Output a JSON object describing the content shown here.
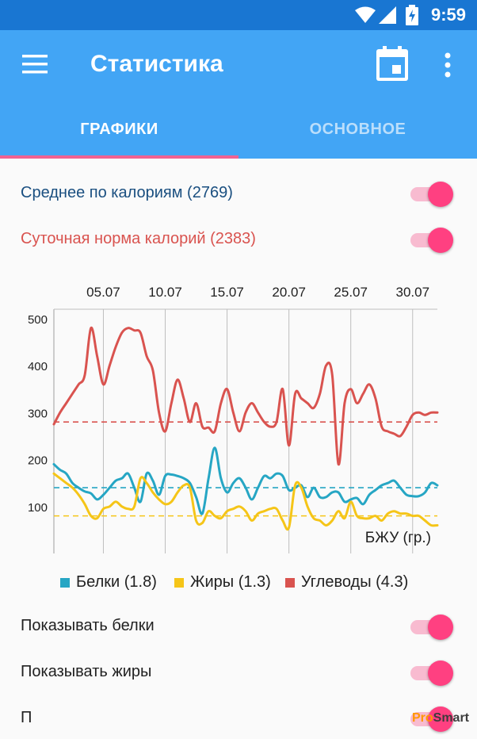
{
  "status_bar": {
    "time": "9:59"
  },
  "app_bar": {
    "title": "Статистика"
  },
  "tabs": [
    {
      "label": "ГРАФИКИ",
      "active": true
    },
    {
      "label": "ОСНОВНОЕ",
      "active": false
    }
  ],
  "toggles_top": [
    {
      "label": "Среднее по калориям (2769)",
      "color": "#1a4f80",
      "checked": true
    },
    {
      "label": "Суточная норма калорий (2383)",
      "color": "#d9534f",
      "checked": true
    }
  ],
  "chart_data": {
    "type": "line",
    "x_ticks": [
      "05.07",
      "10.07",
      "15.07",
      "20.07",
      "25.07",
      "30.07"
    ],
    "x_tick_positions": [
      5,
      10,
      15,
      20,
      25,
      30
    ],
    "x_range": [
      1,
      32
    ],
    "ylim": [
      0,
      520
    ],
    "y_ticks": [
      100,
      200,
      300,
      400,
      500
    ],
    "axis_label": "БЖУ (гр.)",
    "grid": true,
    "series": [
      {
        "name": "Белки (1.8)",
        "color": "#26a6c4",
        "avg": 140,
        "x": [
          1,
          1.5,
          2,
          2.5,
          3,
          3.5,
          4,
          4.5,
          5,
          5.5,
          6,
          6.5,
          7,
          7.5,
          8,
          8.5,
          9,
          9.5,
          10,
          10.5,
          11,
          11.5,
          12,
          12.5,
          13,
          13.5,
          14,
          14.5,
          15,
          15.5,
          16,
          16.5,
          17,
          17.5,
          18,
          18.5,
          19,
          19.5,
          20,
          20.5,
          21,
          21.5,
          22,
          22.5,
          23,
          23.5,
          24,
          24.5,
          25,
          25.5,
          26,
          26.5,
          27,
          27.5,
          28,
          28.5,
          29,
          29.5,
          30,
          30.5,
          31,
          31.5,
          32
        ],
        "values": [
          190,
          178,
          170,
          150,
          140,
          132,
          128,
          115,
          125,
          140,
          155,
          160,
          170,
          140,
          110,
          170,
          155,
          125,
          165,
          168,
          165,
          160,
          150,
          120,
          85,
          160,
          225,
          160,
          130,
          150,
          160,
          140,
          115,
          140,
          165,
          160,
          170,
          165,
          135,
          140,
          145,
          120,
          140,
          120,
          120,
          130,
          130,
          110,
          115,
          118,
          105,
          125,
          135,
          145,
          150,
          155,
          140,
          125,
          122,
          122,
          130,
          150,
          145
        ]
      },
      {
        "name": "Жиры (1.3)",
        "color": "#f5c518",
        "avg": 80,
        "x": [
          1,
          1.5,
          2,
          2.5,
          3,
          3.5,
          4,
          4.5,
          5,
          5.5,
          6,
          6.5,
          7,
          7.5,
          8,
          8.5,
          9,
          9.5,
          10,
          10.5,
          11,
          11.5,
          12,
          12.5,
          13,
          13.5,
          14,
          14.5,
          15,
          15.5,
          16,
          16.5,
          17,
          17.5,
          18,
          18.5,
          19,
          19.5,
          20,
          20.5,
          21,
          21.5,
          22,
          22.5,
          23,
          23.5,
          24,
          24.5,
          25,
          25.5,
          26,
          26.5,
          27,
          27.5,
          28,
          28.5,
          29,
          29.5,
          30,
          30.5,
          31,
          31.5,
          32
        ],
        "values": [
          170,
          160,
          150,
          140,
          125,
          105,
          80,
          75,
          95,
          100,
          110,
          100,
          95,
          100,
          160,
          150,
          130,
          115,
          105,
          110,
          130,
          145,
          140,
          70,
          65,
          90,
          80,
          75,
          90,
          95,
          100,
          90,
          70,
          85,
          90,
          95,
          95,
          70,
          55,
          145,
          140,
          100,
          75,
          70,
          60,
          70,
          90,
          75,
          110,
          80,
          75,
          75,
          80,
          70,
          85,
          90,
          85,
          85,
          80,
          80,
          70,
          60,
          60
        ]
      },
      {
        "name": "Углеводы (4.3)",
        "color": "#d9534f",
        "avg": 280,
        "x": [
          1,
          1.5,
          2,
          2.5,
          3,
          3.5,
          4,
          4.5,
          5,
          5.5,
          6,
          6.5,
          7,
          7.5,
          8,
          8.5,
          9,
          9.5,
          10,
          10.5,
          11,
          11.5,
          12,
          12.5,
          13,
          13.5,
          14,
          14.5,
          15,
          15.5,
          16,
          16.5,
          17,
          17.5,
          18,
          18.5,
          19,
          19.5,
          20,
          20.5,
          21,
          21.5,
          22,
          22.5,
          23,
          23.5,
          24,
          24.5,
          25,
          25.5,
          26,
          26.5,
          27,
          27.5,
          28,
          28.5,
          29,
          29.5,
          30,
          30.5,
          31,
          31.5,
          32
        ],
        "values": [
          275,
          300,
          320,
          340,
          360,
          380,
          480,
          420,
          360,
          400,
          440,
          470,
          480,
          475,
          470,
          420,
          390,
          300,
          260,
          320,
          370,
          330,
          280,
          320,
          270,
          268,
          260,
          320,
          350,
          300,
          260,
          300,
          320,
          300,
          280,
          270,
          280,
          350,
          230,
          340,
          330,
          320,
          310,
          340,
          400,
          380,
          190,
          320,
          350,
          320,
          340,
          360,
          330,
          270,
          260,
          255,
          250,
          270,
          295,
          300,
          295,
          300,
          300
        ]
      }
    ]
  },
  "toggles_bottom": [
    {
      "label": "Показывать белки",
      "checked": true
    },
    {
      "label": "Показывать жиры",
      "checked": true
    },
    {
      "label": "П",
      "checked": true
    }
  ],
  "watermark": {
    "prefix": "Pro",
    "suffix": "Smart"
  }
}
